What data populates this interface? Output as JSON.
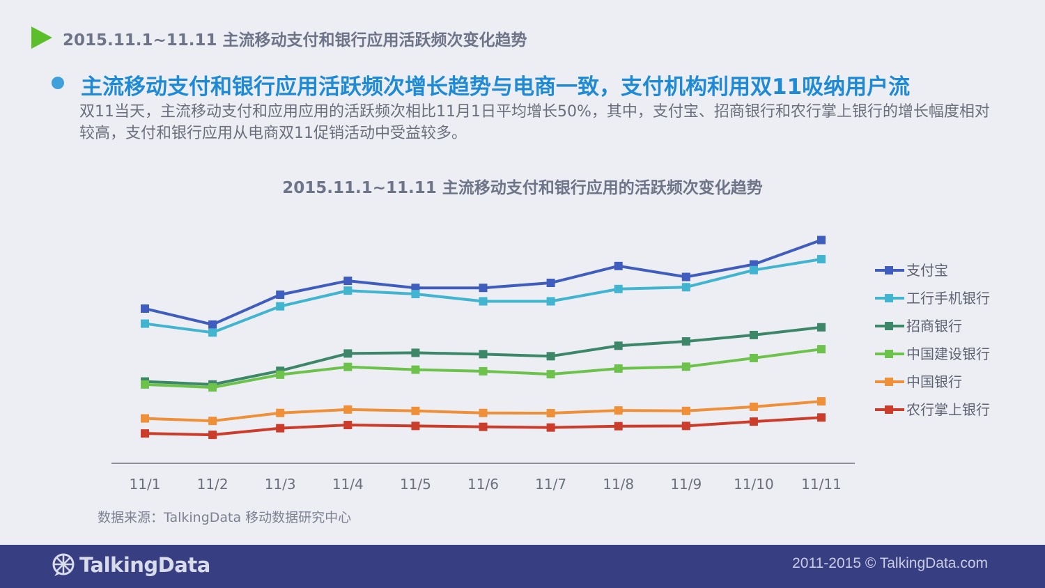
{
  "header": {
    "title": "2015.11.1~11.11 主流移动支付和银行应用活跃频次变化趋势"
  },
  "headline": "主流移动支付和银行应用活跃频次增长趋势与电商一致，支付机构利用双11吸纳用户流",
  "body_text": "双11当天，主流移动支付和应用应用的活跃频次相比11月1日平均增长50%，其中，支付宝、招商银行和农行掌上银行的增长幅度相对较高，支付和银行应用从电商双11促销活动中受益较多。",
  "source": "数据来源：TalkingData 移动数据研究中心",
  "footer": {
    "logo_text": "TalkingData",
    "copyright": "2011-2015 © TalkingData.com"
  },
  "chart_data": {
    "type": "line",
    "title": "2015.11.1~11.11 主流移动支付和银行应用的活跃频次变化趋势",
    "xlabel": "",
    "ylabel": "",
    "x": [
      "11/1",
      "11/2",
      "11/3",
      "11/4",
      "11/5",
      "11/6",
      "11/7",
      "11/8",
      "11/9",
      "11/10",
      "11/11"
    ],
    "ylim": [
      0,
      100
    ],
    "grid": false,
    "legend_position": "right",
    "series": [
      {
        "name": "支付宝",
        "color": "#3f5dbe",
        "values": [
          67.9,
          60.9,
          74.0,
          80.1,
          77.0,
          77.0,
          79.2,
          86.6,
          81.8,
          87.3,
          98.0
        ]
      },
      {
        "name": "工行手机银行",
        "color": "#41b4d0",
        "values": [
          61.3,
          57.4,
          68.9,
          75.8,
          74.3,
          71.1,
          71.1,
          76.5,
          77.3,
          84.8,
          89.6
        ]
      },
      {
        "name": "招商银行",
        "color": "#3b8768",
        "values": [
          35.9,
          34.6,
          40.6,
          48.2,
          48.5,
          47.9,
          47.0,
          51.6,
          53.5,
          56.3,
          59.7
        ]
      },
      {
        "name": "中国建设银行",
        "color": "#6cc24a",
        "values": [
          34.6,
          33.3,
          38.9,
          42.3,
          41.1,
          40.4,
          39.1,
          41.6,
          42.4,
          46.2,
          50.1
        ]
      },
      {
        "name": "中国银行",
        "color": "#ef8f38",
        "values": [
          19.7,
          18.6,
          22.1,
          23.6,
          23.0,
          22.1,
          22.0,
          23.2,
          23.0,
          24.8,
          27.2
        ]
      },
      {
        "name": "农行掌上银行",
        "color": "#cb3d2a",
        "values": [
          13.1,
          12.5,
          15.4,
          16.8,
          16.4,
          16.0,
          15.7,
          16.3,
          16.4,
          18.3,
          20.1
        ]
      }
    ]
  }
}
